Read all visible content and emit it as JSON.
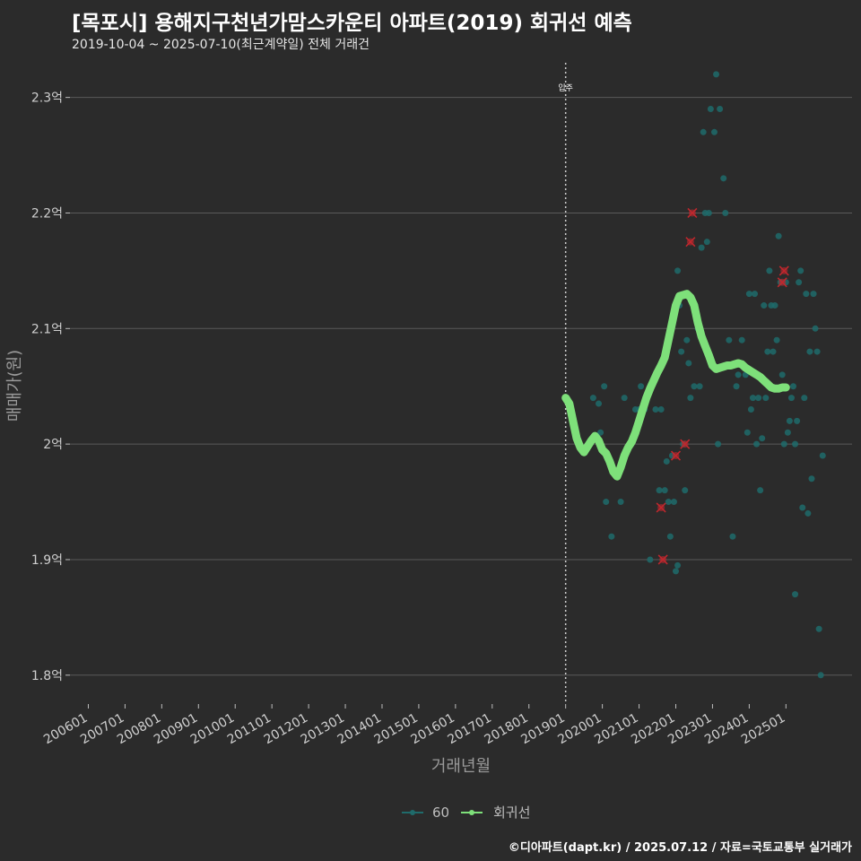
{
  "header": {
    "title": "[목포시] 용해지구천년가맘스카운티 아파트(2019) 회귀선 예측",
    "subtitle": "2019-10-04 ~ 2025-07-10(최근계약일) 전체 거래건"
  },
  "caption": "©디아파트(dapt.kr) / 2025.07.12 / 자료=국토교통부 실거래가",
  "colors": {
    "background": "#2b2b2b",
    "grid": "#5a5a5a",
    "points": "#1f6b6b",
    "regression": "#7ee07a",
    "highlight": "#c0272d",
    "vline": "#cfcfcf"
  },
  "chart_data": {
    "type": "scatter",
    "title": "[목포시] 용해지구천년가맘스카운티 아파트(2019) 회귀선 예측",
    "xlabel": "거래년월",
    "ylabel": "매매가(원)",
    "x_ticks": [
      "200601",
      "200701",
      "200801",
      "200901",
      "201001",
      "201101",
      "201201",
      "201301",
      "201401",
      "201501",
      "201601",
      "201701",
      "201801",
      "201901",
      "202001",
      "202101",
      "202201",
      "202301",
      "202401",
      "202501"
    ],
    "x_range": [
      2005.5,
      2026.8
    ],
    "y_ticks": [
      1.8,
      1.9,
      2.0,
      2.1,
      2.2,
      2.3
    ],
    "y_tick_labels": [
      "1.8억",
      "1.9억",
      "2억",
      "2.1억",
      "2.2억",
      "2.3억"
    ],
    "ylim": [
      1.775,
      2.33
    ],
    "vline": {
      "x": 2019.0,
      "label": "입주"
    },
    "legend": {
      "position": "bottom",
      "items": [
        "60",
        "회귀선"
      ]
    },
    "series": [
      {
        "name": "60",
        "unit": "억",
        "points": [
          [
            2019.75,
            2.04
          ],
          [
            2019.9,
            2.035
          ],
          [
            2019.95,
            2.01
          ],
          [
            2020.05,
            2.05
          ],
          [
            2020.1,
            1.95
          ],
          [
            2020.25,
            1.92
          ],
          [
            2020.5,
            1.95
          ],
          [
            2020.6,
            2.04
          ],
          [
            2020.9,
            2.03
          ],
          [
            2021.0,
            2.03
          ],
          [
            2021.05,
            2.05
          ],
          [
            2021.15,
            2.03
          ],
          [
            2021.3,
            1.9
          ],
          [
            2021.45,
            2.03
          ],
          [
            2021.55,
            1.96
          ],
          [
            2021.6,
            2.03
          ],
          [
            2021.7,
            1.96
          ],
          [
            2021.75,
            1.985
          ],
          [
            2021.8,
            1.95
          ],
          [
            2021.85,
            1.92
          ],
          [
            2021.9,
            1.99
          ],
          [
            2021.95,
            1.95
          ],
          [
            2022.0,
            1.89
          ],
          [
            2022.05,
            1.895
          ],
          [
            2022.05,
            2.15
          ],
          [
            2022.1,
            2.12
          ],
          [
            2022.15,
            2.08
          ],
          [
            2022.2,
            2.0
          ],
          [
            2022.25,
            1.96
          ],
          [
            2022.3,
            2.09
          ],
          [
            2022.35,
            2.07
          ],
          [
            2022.5,
            2.05
          ],
          [
            2022.6,
            2.1
          ],
          [
            2022.65,
            2.05
          ],
          [
            2022.7,
            2.17
          ],
          [
            2022.75,
            2.27
          ],
          [
            2022.8,
            2.2
          ],
          [
            2022.85,
            2.175
          ],
          [
            2022.9,
            2.2
          ],
          [
            2022.95,
            2.29
          ],
          [
            2023.05,
            2.27
          ],
          [
            2023.1,
            2.32
          ],
          [
            2023.15,
            2.0
          ],
          [
            2023.2,
            2.29
          ],
          [
            2023.3,
            2.23
          ],
          [
            2023.35,
            2.2
          ],
          [
            2023.45,
            2.09
          ],
          [
            2023.55,
            1.92
          ],
          [
            2023.65,
            2.05
          ],
          [
            2023.8,
            2.09
          ],
          [
            2023.9,
            2.06
          ],
          [
            2023.95,
            2.01
          ],
          [
            2024.0,
            2.13
          ],
          [
            2024.05,
            2.03
          ],
          [
            2024.1,
            2.04
          ],
          [
            2024.15,
            2.13
          ],
          [
            2024.2,
            2.0
          ],
          [
            2024.25,
            2.04
          ],
          [
            2024.3,
            1.96
          ],
          [
            2024.35,
            2.005
          ],
          [
            2024.45,
            2.04
          ],
          [
            2024.5,
            2.08
          ],
          [
            2024.55,
            2.15
          ],
          [
            2024.6,
            2.12
          ],
          [
            2024.65,
            2.08
          ],
          [
            2024.7,
            2.12
          ],
          [
            2024.75,
            2.09
          ],
          [
            2024.8,
            2.18
          ],
          [
            2024.85,
            2.14
          ],
          [
            2024.9,
            2.06
          ],
          [
            2024.95,
            2.0
          ],
          [
            2025.0,
            2.14
          ],
          [
            2025.05,
            2.01
          ],
          [
            2025.1,
            2.02
          ],
          [
            2025.15,
            2.04
          ],
          [
            2025.2,
            2.05
          ],
          [
            2025.25,
            2.0
          ],
          [
            2025.3,
            2.02
          ],
          [
            2025.35,
            2.14
          ],
          [
            2025.4,
            2.15
          ],
          [
            2025.45,
            1.945
          ],
          [
            2025.5,
            2.04
          ],
          [
            2025.55,
            2.13
          ],
          [
            2025.6,
            1.94
          ],
          [
            2025.65,
            2.08
          ],
          [
            2025.7,
            1.97
          ],
          [
            2025.75,
            2.13
          ],
          [
            2025.8,
            2.1
          ],
          [
            2025.85,
            2.08
          ],
          [
            2025.9,
            1.84
          ],
          [
            2025.95,
            1.8
          ],
          [
            2026.0,
            1.99
          ],
          [
            2025.25,
            1.87
          ],
          [
            2024.4,
            2.12
          ],
          [
            2022.4,
            2.04
          ],
          [
            2023.7,
            2.06
          ]
        ]
      },
      {
        "name": "회귀선",
        "unit": "억",
        "points": [
          [
            2019.0,
            2.04
          ],
          [
            2019.1,
            2.035
          ],
          [
            2019.2,
            2.02
          ],
          [
            2019.3,
            2.005
          ],
          [
            2019.4,
            1.997
          ],
          [
            2019.5,
            1.993
          ],
          [
            2019.6,
            1.998
          ],
          [
            2019.7,
            2.003
          ],
          [
            2019.8,
            2.007
          ],
          [
            2019.9,
            2.003
          ],
          [
            2020.0,
            1.995
          ],
          [
            2020.1,
            1.992
          ],
          [
            2020.2,
            1.985
          ],
          [
            2020.3,
            1.976
          ],
          [
            2020.4,
            1.972
          ],
          [
            2020.5,
            1.98
          ],
          [
            2020.6,
            1.99
          ],
          [
            2020.7,
            1.997
          ],
          [
            2020.8,
            2.002
          ],
          [
            2020.9,
            2.01
          ],
          [
            2021.0,
            2.02
          ],
          [
            2021.1,
            2.03
          ],
          [
            2021.2,
            2.04
          ],
          [
            2021.3,
            2.048
          ],
          [
            2021.4,
            2.055
          ],
          [
            2021.5,
            2.062
          ],
          [
            2021.6,
            2.068
          ],
          [
            2021.7,
            2.075
          ],
          [
            2021.8,
            2.09
          ],
          [
            2021.9,
            2.105
          ],
          [
            2022.0,
            2.12
          ],
          [
            2022.1,
            2.128
          ],
          [
            2022.2,
            2.129
          ],
          [
            2022.3,
            2.13
          ],
          [
            2022.4,
            2.127
          ],
          [
            2022.5,
            2.12
          ],
          [
            2022.6,
            2.105
          ],
          [
            2022.7,
            2.093
          ],
          [
            2022.8,
            2.085
          ],
          [
            2022.9,
            2.077
          ],
          [
            2023.0,
            2.068
          ],
          [
            2023.1,
            2.065
          ],
          [
            2023.2,
            2.066
          ],
          [
            2023.3,
            2.067
          ],
          [
            2023.4,
            2.068
          ],
          [
            2023.5,
            2.068
          ],
          [
            2023.6,
            2.069
          ],
          [
            2023.7,
            2.07
          ],
          [
            2023.8,
            2.069
          ],
          [
            2023.9,
            2.066
          ],
          [
            2024.0,
            2.064
          ],
          [
            2024.1,
            2.062
          ],
          [
            2024.2,
            2.06
          ],
          [
            2024.3,
            2.058
          ],
          [
            2024.4,
            2.055
          ],
          [
            2024.5,
            2.052
          ],
          [
            2024.6,
            2.049
          ],
          [
            2024.7,
            2.048
          ],
          [
            2024.8,
            2.048
          ],
          [
            2024.9,
            2.049
          ],
          [
            2025.0,
            2.049
          ]
        ]
      },
      {
        "name": "highlight",
        "unit": "억",
        "points": [
          [
            2021.6,
            1.945
          ],
          [
            2021.65,
            1.9
          ],
          [
            2022.0,
            1.99
          ],
          [
            2022.25,
            2.0
          ],
          [
            2022.4,
            2.175
          ],
          [
            2022.45,
            2.2
          ],
          [
            2024.9,
            2.14
          ],
          [
            2024.95,
            2.15
          ]
        ]
      }
    ]
  }
}
